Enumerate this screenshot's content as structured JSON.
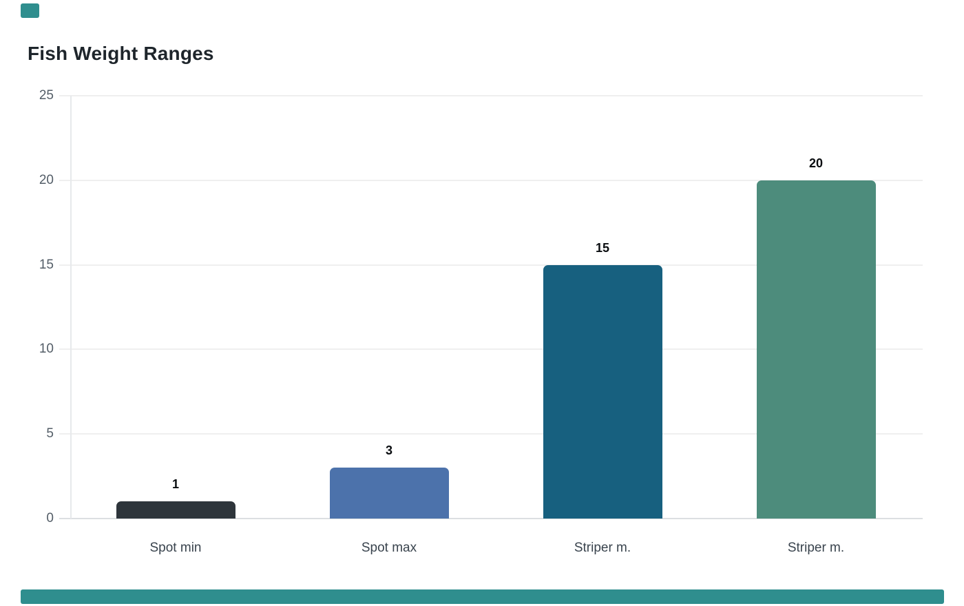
{
  "chart_data": {
    "type": "bar",
    "title": "Fish Weight Ranges",
    "categories": [
      "Spot min",
      "Spot max",
      "Striper m.",
      "Striper m."
    ],
    "values": [
      1,
      3,
      15,
      20
    ],
    "data_labels": [
      "1",
      "3",
      "15",
      "20"
    ],
    "bar_colors": [
      "#2e353b",
      "#4c72ab",
      "#17607f",
      "#4d8c7c"
    ],
    "bar_patterns": [
      "dots",
      "solid",
      "solid",
      "solid"
    ],
    "xlabel": "",
    "ylabel": "",
    "y_ticks": [
      "0",
      "5",
      "10",
      "15",
      "20",
      "25"
    ],
    "ylim": [
      0,
      25
    ],
    "grid": "horizontal",
    "legend": "none"
  },
  "colors": {
    "accent_teal": "#2f8e8e",
    "grid_line": "#efefef",
    "baseline": "#dcdfe2",
    "axis_line": "#e7e9eb",
    "title_text": "#1e252b",
    "tick_text": "#535d67",
    "category_text": "#39434d",
    "value_text": "#0a0d10",
    "background": "#ffffff"
  }
}
